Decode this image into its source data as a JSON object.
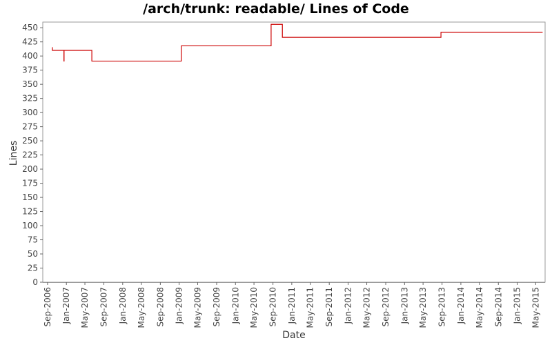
{
  "chart_data": {
    "type": "line",
    "title": "/arch/trunk: readable/ Lines of Code",
    "xlabel": "Date",
    "ylabel": "Lines",
    "ylim": [
      0,
      460
    ],
    "xlim": [
      "2006-08-01",
      "2015-07-01"
    ],
    "y_ticks": [
      0,
      25,
      50,
      75,
      100,
      125,
      150,
      175,
      200,
      225,
      250,
      275,
      300,
      325,
      350,
      375,
      400,
      425,
      450
    ],
    "x_ticks": [
      {
        "date": "2006-09-01",
        "label": "Sep-2006"
      },
      {
        "date": "2007-01-01",
        "label": "Jan-2007"
      },
      {
        "date": "2007-05-01",
        "label": "May-2007"
      },
      {
        "date": "2007-09-01",
        "label": "Sep-2007"
      },
      {
        "date": "2008-01-01",
        "label": "Jan-2008"
      },
      {
        "date": "2008-05-01",
        "label": "May-2008"
      },
      {
        "date": "2008-09-01",
        "label": "Sep-2008"
      },
      {
        "date": "2009-01-01",
        "label": "Jan-2009"
      },
      {
        "date": "2009-05-01",
        "label": "May-2009"
      },
      {
        "date": "2009-09-01",
        "label": "Sep-2009"
      },
      {
        "date": "2010-01-01",
        "label": "Jan-2010"
      },
      {
        "date": "2010-05-01",
        "label": "May-2010"
      },
      {
        "date": "2010-09-01",
        "label": "Sep-2010"
      },
      {
        "date": "2011-01-01",
        "label": "Jan-2011"
      },
      {
        "date": "2011-05-01",
        "label": "May-2011"
      },
      {
        "date": "2011-09-01",
        "label": "Sep-2011"
      },
      {
        "date": "2012-01-01",
        "label": "Jan-2012"
      },
      {
        "date": "2012-05-01",
        "label": "May-2012"
      },
      {
        "date": "2012-09-01",
        "label": "Sep-2012"
      },
      {
        "date": "2013-01-01",
        "label": "Jan-2013"
      },
      {
        "date": "2013-05-01",
        "label": "May-2013"
      },
      {
        "date": "2013-09-01",
        "label": "Sep-2013"
      },
      {
        "date": "2014-01-01",
        "label": "Jan-2014"
      },
      {
        "date": "2014-05-01",
        "label": "May-2014"
      },
      {
        "date": "2014-09-01",
        "label": "Sep-2014"
      },
      {
        "date": "2015-01-01",
        "label": "Jan-2015"
      },
      {
        "date": "2015-05-01",
        "label": "May-2015"
      }
    ],
    "grid": false,
    "legend": "none",
    "series": [
      {
        "color": "#cc0000",
        "step": true,
        "points": [
          {
            "x": "2006-10-01",
            "y": 415
          },
          {
            "x": "2006-10-02",
            "y": 410
          },
          {
            "x": "2006-12-15",
            "y": 410
          },
          {
            "x": "2006-12-16",
            "y": 391
          },
          {
            "x": "2006-12-17",
            "y": 410
          },
          {
            "x": "2007-06-15",
            "y": 391
          },
          {
            "x": "2009-01-15",
            "y": 418
          },
          {
            "x": "2010-08-20",
            "y": 456
          },
          {
            "x": "2010-11-01",
            "y": 433
          },
          {
            "x": "2013-08-25",
            "y": 442
          },
          {
            "x": "2015-06-15",
            "y": 442
          }
        ]
      }
    ]
  }
}
